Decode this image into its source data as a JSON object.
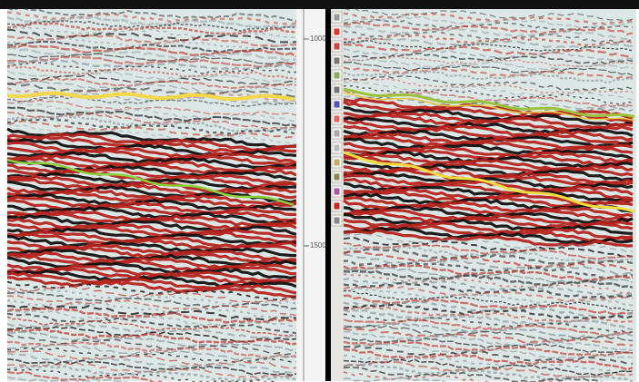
{
  "axis": {
    "labels": [
      "1000",
      "1500"
    ]
  }
}
